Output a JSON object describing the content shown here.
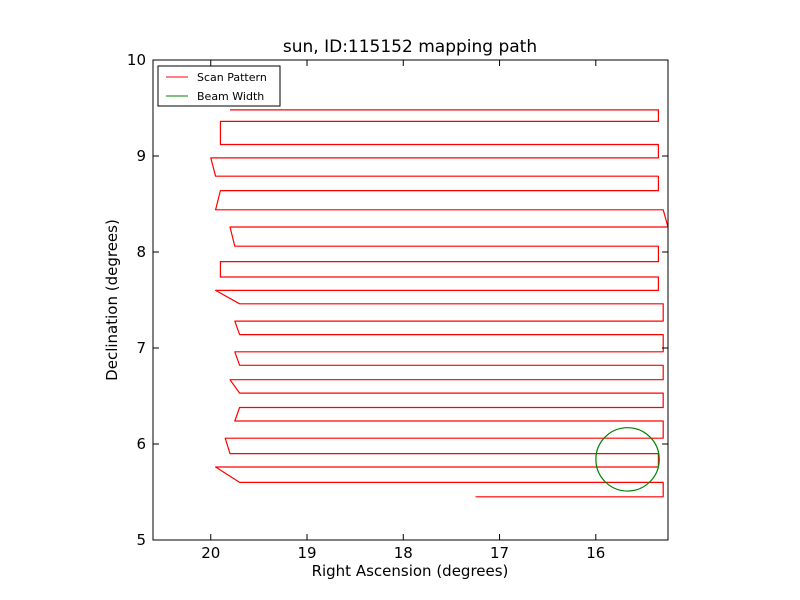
{
  "chart_data": {
    "type": "line",
    "title": "sun, ID:115152 mapping path",
    "xlabel": "Right Ascension (degrees)",
    "ylabel": "Declination (degrees)",
    "xlim": [
      20.6,
      15.25
    ],
    "ylim": [
      5,
      10
    ],
    "x_ticks": [
      20,
      19,
      18,
      17,
      16
    ],
    "y_ticks": [
      5,
      6,
      7,
      8,
      9,
      10
    ],
    "x_tick_labels": [
      "20",
      "19",
      "18",
      "17",
      "16"
    ],
    "y_tick_labels": [
      "5",
      "6",
      "7",
      "8",
      "9",
      "10"
    ],
    "grid": false,
    "legend_position": "top-left",
    "legend": [
      "Scan Pattern",
      "Beam Width"
    ],
    "series": [
      {
        "name": "Scan Pattern",
        "color": "#ff0000",
        "rows": [
          {
            "dec": 9.48,
            "ra_start": 19.8,
            "ra_end": 15.35
          },
          {
            "dec": 9.36,
            "ra_start": 15.35,
            "ra_end": 19.9
          },
          {
            "dec": 9.12,
            "ra_start": 19.9,
            "ra_end": 15.35
          },
          {
            "dec": 8.98,
            "ra_start": 15.35,
            "ra_end": 20.0
          },
          {
            "dec": 8.79,
            "ra_start": 19.95,
            "ra_end": 15.35
          },
          {
            "dec": 8.64,
            "ra_start": 15.35,
            "ra_end": 19.9
          },
          {
            "dec": 8.44,
            "ra_start": 19.95,
            "ra_end": 15.3
          },
          {
            "dec": 8.26,
            "ra_start": 15.25,
            "ra_end": 19.8
          },
          {
            "dec": 8.06,
            "ra_start": 19.75,
            "ra_end": 15.35
          },
          {
            "dec": 7.9,
            "ra_start": 15.35,
            "ra_end": 19.9
          },
          {
            "dec": 7.74,
            "ra_start": 19.9,
            "ra_end": 15.35
          },
          {
            "dec": 7.6,
            "ra_start": 15.35,
            "ra_end": 19.95
          },
          {
            "dec": 7.46,
            "ra_start": 19.7,
            "ra_end": 15.3
          },
          {
            "dec": 7.28,
            "ra_start": 15.3,
            "ra_end": 19.75
          },
          {
            "dec": 7.14,
            "ra_start": 19.7,
            "ra_end": 15.3
          },
          {
            "dec": 6.96,
            "ra_start": 15.3,
            "ra_end": 19.75
          },
          {
            "dec": 6.82,
            "ra_start": 19.7,
            "ra_end": 15.3
          },
          {
            "dec": 6.67,
            "ra_start": 15.3,
            "ra_end": 19.8
          },
          {
            "dec": 6.53,
            "ra_start": 19.7,
            "ra_end": 15.3
          },
          {
            "dec": 6.38,
            "ra_start": 15.3,
            "ra_end": 19.7
          },
          {
            "dec": 6.24,
            "ra_start": 19.75,
            "ra_end": 15.3
          },
          {
            "dec": 6.06,
            "ra_start": 15.3,
            "ra_end": 19.85
          },
          {
            "dec": 5.9,
            "ra_start": 19.8,
            "ra_end": 15.35
          },
          {
            "dec": 5.76,
            "ra_start": 15.35,
            "ra_end": 19.95
          },
          {
            "dec": 5.6,
            "ra_start": 19.7,
            "ra_end": 15.3
          },
          {
            "dec": 5.45,
            "ra_start": 15.3,
            "ra_end": 17.25
          }
        ]
      },
      {
        "name": "Beam Width",
        "color": "#008000",
        "shape": "circle",
        "center": [
          15.67,
          5.84
        ],
        "radius_dec": 0.33
      }
    ]
  }
}
